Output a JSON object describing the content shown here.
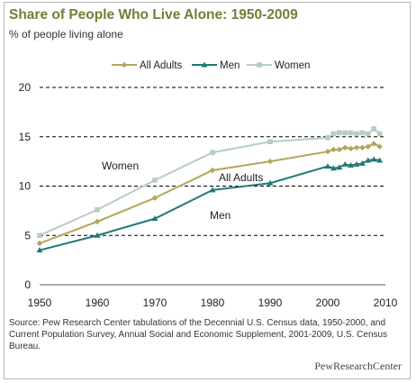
{
  "title": "Share of People Who Live Alone: 1950-2009",
  "subtitle": "% of people living alone",
  "source": "Source: Pew Research Center tabulations of the Decennial U.S. Census data, 1950-2000, and Current Population Survey, Annual Social and Economic Supplement, 2001-2009, U.S. Census Bureau.",
  "brand": "PewResearchCenter",
  "colors": {
    "all_adults": "#b3a55a",
    "men": "#1f7a78",
    "women": "#b7cdc5",
    "title": "#7a7b36",
    "grid": "#000000"
  },
  "chart_data": {
    "type": "line",
    "x_ticks": [
      1950,
      1960,
      1970,
      1980,
      1990,
      2000,
      2010
    ],
    "y_ticks": [
      0,
      5,
      10,
      15,
      20
    ],
    "xlim": [
      1950,
      2010
    ],
    "ylim": [
      0,
      20
    ],
    "grid": "horizontal dashed at 5, 10, 15, 20",
    "legend_position": "top",
    "series": [
      {
        "name": "All Adults",
        "marker": "diamond",
        "color": "#b3a55a",
        "x": [
          1950,
          1960,
          1970,
          1980,
          1990,
          2000,
          2001,
          2002,
          2003,
          2004,
          2005,
          2006,
          2007,
          2008,
          2009
        ],
        "values": [
          4.2,
          6.4,
          8.8,
          11.6,
          12.5,
          13.5,
          13.7,
          13.7,
          13.9,
          13.8,
          13.9,
          13.9,
          14.0,
          14.3,
          14.0
        ]
      },
      {
        "name": "Men",
        "marker": "triangle",
        "color": "#1f7a78",
        "x": [
          1950,
          1960,
          1970,
          1980,
          1990,
          2000,
          2001,
          2002,
          2003,
          2004,
          2005,
          2006,
          2007,
          2008,
          2009
        ],
        "values": [
          3.5,
          5.0,
          6.7,
          9.6,
          10.3,
          12.0,
          11.8,
          11.9,
          12.2,
          12.1,
          12.2,
          12.3,
          12.6,
          12.7,
          12.6
        ]
      },
      {
        "name": "Women",
        "marker": "square",
        "color": "#b7cdc5",
        "x": [
          1950,
          1960,
          1970,
          1980,
          1990,
          2000,
          2001,
          2002,
          2003,
          2004,
          2005,
          2006,
          2007,
          2008,
          2009
        ],
        "values": [
          5.0,
          7.6,
          10.6,
          13.4,
          14.5,
          14.9,
          15.3,
          15.4,
          15.4,
          15.4,
          15.3,
          15.4,
          15.3,
          15.8,
          15.3
        ]
      }
    ],
    "annotations": [
      {
        "text": "Women",
        "series": "Women"
      },
      {
        "text": "All Adults",
        "series": "All Adults"
      },
      {
        "text": "Men",
        "series": "Men"
      }
    ]
  }
}
